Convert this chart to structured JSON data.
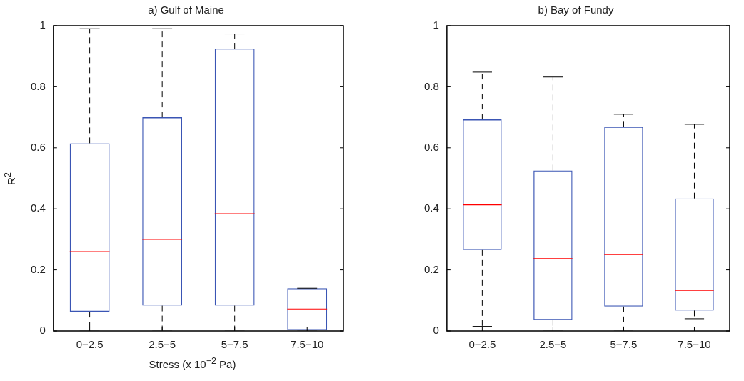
{
  "chart_data": [
    {
      "type": "box",
      "title": "a) Gulf of Maine",
      "xlabel": "Stress (x 10$^{−2}$ Pa)",
      "ylabel": "R$^{2}$",
      "categories": [
        "0−2.5",
        "2.5−5",
        "5−7.5",
        "7.5−10"
      ],
      "ylim": [
        0,
        1
      ],
      "yticks": [
        0,
        0.2,
        0.4,
        0.6,
        0.8,
        1
      ],
      "series": [
        {
          "color": "#3a55b4",
          "boxes": [
            {
              "low": 0.003,
              "q1": 0.063,
              "median": 0.26,
              "q3": 0.615,
              "high": 0.99
            },
            {
              "low": 0.003,
              "q1": 0.083,
              "median": 0.3,
              "q3": 0.7,
              "high": 0.99
            },
            {
              "low": 0.003,
              "q1": 0.083,
              "median": 0.384,
              "q3": 0.925,
              "high": 0.973
            },
            {
              "low": 0.003,
              "q1": 0.003,
              "median": 0.072,
              "q3": 0.14,
              "high": 0.14
            }
          ]
        }
      ]
    },
    {
      "type": "box",
      "title": "b) Bay of Fundy",
      "categories": [
        "0−2.5",
        "2.5−5",
        "5−7.5",
        "7.5−10"
      ],
      "ylim": [
        0,
        1
      ],
      "yticks": [
        0,
        0.2,
        0.4,
        0.6,
        0.8,
        1
      ],
      "series": [
        {
          "color": "#3a55b4",
          "boxes": [
            {
              "low": 0.015,
              "q1": 0.265,
              "median": 0.413,
              "q3": 0.693,
              "high": 0.848
            },
            {
              "low": 0.003,
              "q1": 0.036,
              "median": 0.237,
              "q3": 0.526,
              "high": 0.832
            },
            {
              "low": 0.003,
              "q1": 0.08,
              "median": 0.25,
              "q3": 0.669,
              "high": 0.71
            },
            {
              "low": 0.04,
              "q1": 0.067,
              "median": 0.133,
              "q3": 0.434,
              "high": 0.677
            }
          ]
        }
      ]
    }
  ]
}
